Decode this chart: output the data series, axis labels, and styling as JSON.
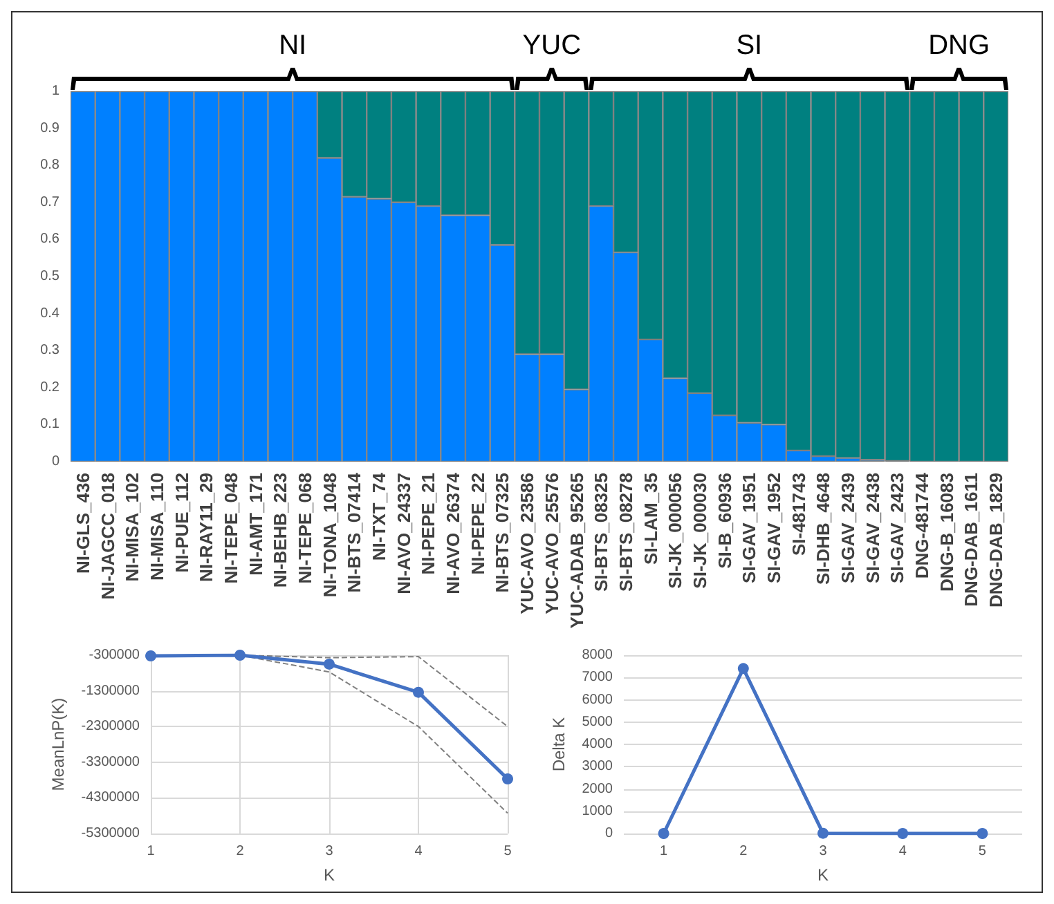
{
  "chart_data": [
    {
      "type": "bar",
      "stacked": true,
      "categories": [
        "NI-GLS_436",
        "NI-JAGCC_018",
        "NI-MISA_102",
        "NI-MISA_110",
        "NI-PUE_112",
        "NI-RAY11_29",
        "NI-TEPE_048",
        "NI-AMT_171",
        "NI-BEHB_223",
        "NI-TEPE_068",
        "NI-TONA_1048",
        "NI-BTS_07414",
        "NI-TXT_74",
        "NI-AVO_24337",
        "NI-PEPE_21",
        "NI-AVO_26374",
        "NI-PEPE_22",
        "NI-BTS_07325",
        "YUC-AVO_23586",
        "YUC-AVO_25576",
        "YUC-ADAB_95265",
        "SI-BTS_08325",
        "SI-BTS_08278",
        "SI-LAM_35",
        "SI-JK_000056",
        "SI-JK_000030",
        "SI-B_60936",
        "SI-GAV_1951",
        "SI-GAV_1952",
        "SI-481743",
        "SI-DHB_4648",
        "SI-GAV_2439",
        "SI-GAV_2438",
        "SI-GAV_2423",
        "DNG-481744",
        "DNG-B_16083",
        "DNG-DAB_1611",
        "DNG-DAB_1829"
      ],
      "series": [
        {
          "color": "#0080ff",
          "values": [
            1,
            1,
            1,
            1,
            1,
            1,
            1,
            1,
            1,
            1,
            0.82,
            0.715,
            0.71,
            0.7,
            0.69,
            0.665,
            0.665,
            0.585,
            0.29,
            0.29,
            0.195,
            0.69,
            0.565,
            0.33,
            0.225,
            0.185,
            0.125,
            0.105,
            0.1,
            0.03,
            0.015,
            0.01,
            0.005,
            0.002,
            0,
            0,
            0,
            0
          ]
        },
        {
          "color": "#008080",
          "values": [
            0,
            0,
            0,
            0,
            0,
            0,
            0,
            0,
            0,
            0,
            0.18,
            0.285,
            0.29,
            0.3,
            0.31,
            0.335,
            0.335,
            0.415,
            0.71,
            0.71,
            0.805,
            0.31,
            0.435,
            0.67,
            0.775,
            0.815,
            0.875,
            0.895,
            0.9,
            0.97,
            0.985,
            0.99,
            0.995,
            0.998,
            1,
            1,
            1,
            1
          ]
        }
      ],
      "ylim": [
        0,
        1
      ],
      "yticks": [
        0,
        0.1,
        0.2,
        0.3,
        0.4,
        0.5,
        0.6,
        0.7,
        0.8,
        0.9,
        1
      ],
      "grid": false,
      "annotations": [
        "NI",
        "YUC",
        "SI",
        "DNG"
      ]
    },
    {
      "type": "line",
      "xlabel": "K",
      "ylabel": "MeanLnP(K)",
      "x": [
        1,
        2,
        3,
        4,
        5
      ],
      "series": [
        {
          "color": "#4472c4",
          "values": [
            -320000,
            -300000,
            -550000,
            -1340000,
            -3770000
          ]
        },
        {
          "color": "#7f7f7f",
          "values": [
            -330000,
            -300000,
            -770000,
            -2300000,
            -4730000
          ],
          "line_style": "dashed",
          "marker": "none"
        },
        {
          "color": "#7f7f7f",
          "values": [
            -300000,
            -300000,
            -370000,
            -340000,
            -2300000
          ],
          "line_style": "dashed",
          "marker": "none"
        }
      ],
      "xlim": [
        1,
        5
      ],
      "xticks": [
        1,
        2,
        3,
        4,
        5
      ],
      "ylim": [
        -5300000,
        -300000
      ],
      "yticks": [
        -5300000,
        -4300000,
        -3300000,
        -2300000,
        -1300000,
        -300000
      ],
      "grid": true,
      "marker": "circle",
      "line_style": "solid"
    },
    {
      "type": "line",
      "xlabel": "K",
      "ylabel": "Delta K",
      "categories": [
        "1",
        "2",
        "3",
        "4",
        "5"
      ],
      "series": [
        {
          "color": "#4472c4",
          "values": [
            0,
            7400,
            10,
            0,
            0
          ]
        }
      ],
      "ylim": [
        0,
        8000
      ],
      "yticks": [
        0,
        1000,
        2000,
        3000,
        4000,
        5000,
        6000,
        7000,
        8000
      ],
      "grid": "y",
      "marker": "circle",
      "line_style": "solid"
    }
  ]
}
